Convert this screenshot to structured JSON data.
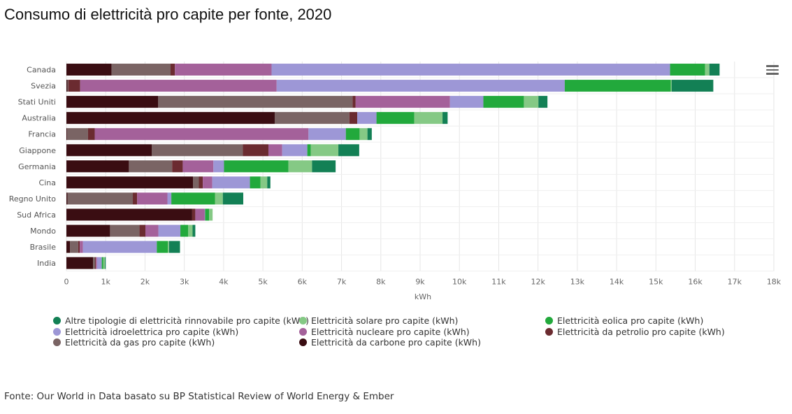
{
  "title": "Consumo di elettricità pro capite per fonte, 2020",
  "footer": "Fonte: Our World in Data basato su BP Statistical Review of World Energy & Ember",
  "chart_data": {
    "type": "bar",
    "orientation": "horizontal",
    "stacked": true,
    "categories": [
      "Canada",
      "Svezia",
      "Stati Uniti",
      "Australia",
      "Francia",
      "Giappone",
      "Germania",
      "Cina",
      "Regno Unito",
      "Sud Africa",
      "Mondo",
      "Brasile",
      "India"
    ],
    "xlabel": "kWh",
    "xlim": [
      0,
      18000
    ],
    "xticks": [
      0,
      1000,
      2000,
      3000,
      4000,
      5000,
      6000,
      7000,
      8000,
      9000,
      10000,
      11000,
      12000,
      13000,
      14000,
      15000,
      16000,
      17000,
      18000
    ],
    "xtick_labels": [
      "0",
      "1k",
      "2k",
      "3k",
      "4k",
      "5k",
      "6k",
      "7k",
      "8k",
      "9k",
      "10k",
      "11k",
      "12k",
      "13k",
      "14k",
      "15k",
      "16k",
      "17k",
      "18k"
    ],
    "grid": true,
    "legend_position": "bottom",
    "series": [
      {
        "name": "Elettricità da carbone pro capite (kWh)",
        "color": "#3a0d12",
        "values": [
          1150,
          30,
          2330,
          5300,
          20,
          2170,
          1590,
          3220,
          30,
          3200,
          1110,
          90,
          680
        ]
      },
      {
        "name": "Elettricità da gas pro capite (kWh)",
        "color": "#7a6464",
        "values": [
          1500,
          20,
          4950,
          1900,
          530,
          2320,
          1100,
          150,
          1660,
          0,
          750,
          210,
          50
        ]
      },
      {
        "name": "Elettricità da petrolio pro capite (kWh)",
        "color": "#6b2b30",
        "values": [
          110,
          300,
          80,
          200,
          170,
          650,
          270,
          100,
          110,
          80,
          150,
          40,
          20
        ]
      },
      {
        "name": "Elettricità nucleare pro capite (kWh)",
        "color": "#a4619a",
        "values": [
          2460,
          5000,
          2400,
          0,
          5440,
          350,
          780,
          240,
          770,
          240,
          330,
          80,
          30
        ]
      },
      {
        "name": "Elettricità idroelettrica pro capite (kWh)",
        "color": "#9d97d6",
        "values": [
          10140,
          7330,
          850,
          490,
          950,
          640,
          270,
          960,
          100,
          10,
          560,
          1880,
          120
        ]
      },
      {
        "name": "Elettricità eolica pro capite (kWh)",
        "color": "#22a93c",
        "values": [
          890,
          2700,
          1030,
          960,
          350,
          90,
          1640,
          270,
          1110,
          100,
          200,
          280,
          40
        ]
      },
      {
        "name": "Elettricità solare pro capite (kWh)",
        "color": "#85c985",
        "values": [
          110,
          20,
          370,
          720,
          200,
          700,
          600,
          170,
          200,
          90,
          110,
          30,
          40
        ]
      },
      {
        "name": "Altre tipologie di elettricità rinnovabile pro capite (kWh)",
        "color": "#138055",
        "values": [
          260,
          1060,
          230,
          130,
          110,
          530,
          600,
          80,
          520,
          0,
          70,
          280,
          20
        ]
      }
    ]
  },
  "legend_order": [
    "Altre tipologie di elettricità rinnovabile pro capite (kWh)",
    "Elettricità solare pro capite (kWh)",
    "Elettricità eolica pro capite (kWh)",
    "Elettricità idroelettrica pro capite (kWh)",
    "Elettricità nucleare pro capite (kWh)",
    "Elettricità da petrolio pro capite (kWh)",
    "Elettricità da gas pro capite (kWh)",
    "Elettricità da carbone pro capite (kWh)"
  ],
  "menu_icon": "hamburger-menu-icon"
}
